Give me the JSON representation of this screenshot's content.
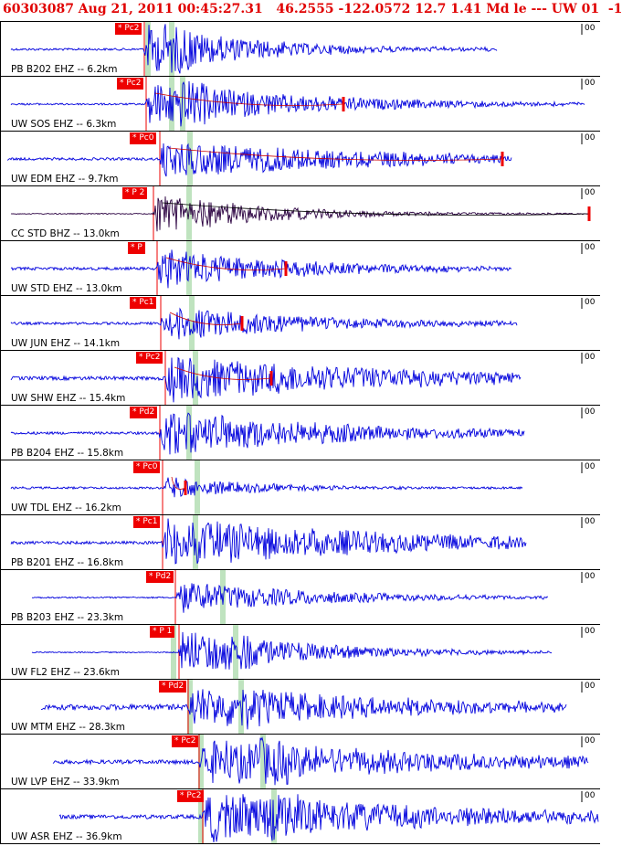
{
  "header": {
    "text": "60303087 Aug 21, 2011 00:45:27.31   46.2555 -122.0572 12.7 1.41 Md le --- UW 01  -1"
  },
  "axis_tick": "00",
  "colors": {
    "trace": "#0000dd",
    "trace_dark": "#2a0040",
    "pick": "#ee0000",
    "phase_band": "#bfe3bf",
    "header": "#e00000"
  },
  "traces": [
    {
      "station": "PB B202 EHZ -- 6.2km",
      "pick": "* Pc2"
    },
    {
      "station": "UW SOS EHZ -- 6.3km",
      "pick": "* Pc2"
    },
    {
      "station": "UW EDM EHZ -- 9.7km",
      "pick": "* Pc0"
    },
    {
      "station": "CC STD BHZ -- 13.0km",
      "pick": "* P 2"
    },
    {
      "station": "UW STD EHZ -- 13.0km",
      "pick": "* P"
    },
    {
      "station": "UW JUN EHZ -- 14.1km",
      "pick": "* Pc1"
    },
    {
      "station": "UW SHW EHZ -- 15.4km",
      "pick": "* Pc2"
    },
    {
      "station": "PB B204 EHZ -- 15.8km",
      "pick": "* Pd2"
    },
    {
      "station": "UW TDL EHZ -- 16.2km",
      "pick": "* Pc0"
    },
    {
      "station": "PB B201 EHZ -- 16.8km",
      "pick": "* Pc1"
    },
    {
      "station": "PB B203 EHZ -- 23.3km",
      "pick": "* Pd2"
    },
    {
      "station": "UW FL2 EHZ -- 23.6km",
      "pick": "* P 1"
    },
    {
      "station": "UW MTM EHZ -- 28.3km",
      "pick": "* Pd2"
    },
    {
      "station": "UW LVP EHZ -- 33.9km",
      "pick": "* Pc2"
    },
    {
      "station": "UW ASR EHZ -- 36.9km",
      "pick": "* Pc2"
    }
  ]
}
